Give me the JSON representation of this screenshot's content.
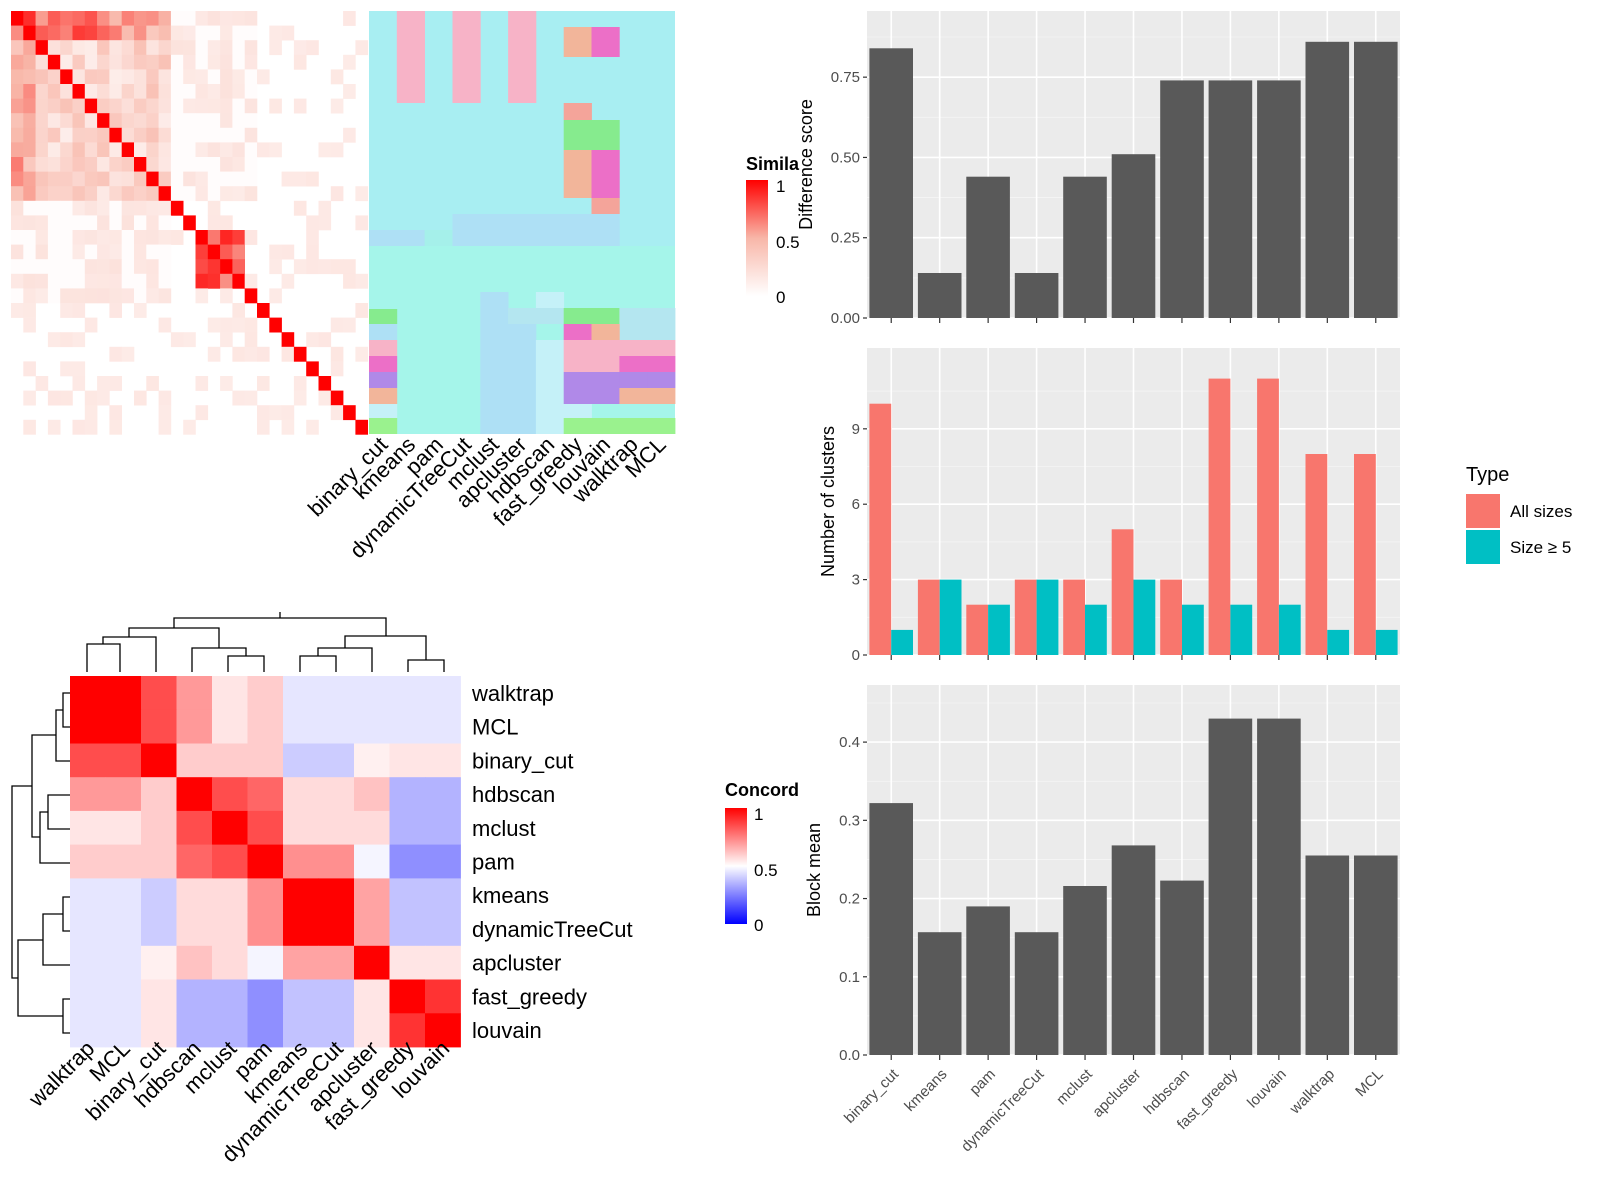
{
  "methods": [
    "binary_cut",
    "kmeans",
    "pam",
    "dynamicTreeCut",
    "mclust",
    "apcluster",
    "hdbscan",
    "fast_greedy",
    "louvain",
    "walktrap",
    "MCL"
  ],
  "legends": {
    "similarity_title": "Simila",
    "similarity_ticks": [
      "1",
      "0.5",
      "0"
    ],
    "concordance_title": "Concord",
    "concordance_ticks": [
      "1",
      "0.5",
      "0"
    ],
    "type_title": "Type",
    "type_items": [
      "All sizes",
      "Size ≥ 5"
    ]
  },
  "colors": {
    "bar_gray": "#595959",
    "all_sizes": "#F8766D",
    "size5": "#00BFC4",
    "panel_bg": "#EBEBEB"
  },
  "chart_data": [
    {
      "type": "heatmap",
      "name": "similarity_matrix",
      "legend_title": "Simila",
      "color_scale": {
        "0": "#ffffff",
        "0.5": "#f8b6a8",
        "1": "#ff0000"
      }
    },
    {
      "type": "heatmap",
      "name": "cluster_membership",
      "columns": [
        "binary_cut",
        "kmeans",
        "pam",
        "dynamicTreeCut",
        "mclust",
        "apcluster",
        "hdbscan",
        "fast_greedy",
        "louvain",
        "walktrap",
        "MCL"
      ]
    },
    {
      "type": "heatmap",
      "name": "concordance_matrix",
      "legend_title": "Concord",
      "rows": [
        "walktrap",
        "MCL",
        "binary_cut",
        "hdbscan",
        "mclust",
        "pam",
        "kmeans",
        "dynamicTreeCut",
        "apcluster",
        "fast_greedy",
        "louvain"
      ],
      "columns": [
        "walktrap",
        "MCL",
        "binary_cut",
        "hdbscan",
        "mclust",
        "pam",
        "kmeans",
        "dynamicTreeCut",
        "apcluster",
        "fast_greedy",
        "louvain"
      ],
      "values": [
        [
          1.0,
          1.0,
          0.85,
          0.7,
          0.55,
          0.6,
          0.45,
          0.45,
          0.45,
          0.45,
          0.45
        ],
        [
          1.0,
          1.0,
          0.85,
          0.7,
          0.55,
          0.6,
          0.45,
          0.45,
          0.45,
          0.45,
          0.45
        ],
        [
          0.85,
          0.85,
          1.0,
          0.6,
          0.6,
          0.6,
          0.4,
          0.4,
          0.53,
          0.55,
          0.55
        ],
        [
          0.7,
          0.7,
          0.6,
          1.0,
          0.85,
          0.8,
          0.57,
          0.57,
          0.62,
          0.35,
          0.35
        ],
        [
          0.55,
          0.55,
          0.6,
          0.85,
          1.0,
          0.85,
          0.57,
          0.57,
          0.57,
          0.35,
          0.35
        ],
        [
          0.6,
          0.6,
          0.6,
          0.8,
          0.85,
          1.0,
          0.72,
          0.72,
          0.48,
          0.28,
          0.28
        ],
        [
          0.45,
          0.45,
          0.4,
          0.57,
          0.57,
          0.72,
          1.0,
          1.0,
          0.68,
          0.38,
          0.38
        ],
        [
          0.45,
          0.45,
          0.4,
          0.57,
          0.57,
          0.72,
          1.0,
          1.0,
          0.68,
          0.38,
          0.38
        ],
        [
          0.45,
          0.45,
          0.53,
          0.62,
          0.57,
          0.48,
          0.68,
          0.68,
          1.0,
          0.55,
          0.55
        ],
        [
          0.45,
          0.45,
          0.55,
          0.35,
          0.35,
          0.28,
          0.38,
          0.38,
          0.55,
          1.0,
          0.9
        ],
        [
          0.45,
          0.45,
          0.55,
          0.35,
          0.35,
          0.28,
          0.38,
          0.38,
          0.55,
          0.9,
          1.0
        ]
      ],
      "color_scale": {
        "0": "#0000ff",
        "0.5": "#ffffff",
        "1": "#ff0000"
      }
    },
    {
      "type": "bar",
      "name": "difference_score",
      "categories": [
        "binary_cut",
        "kmeans",
        "pam",
        "dynamicTreeCut",
        "mclust",
        "apcluster",
        "hdbscan",
        "fast_greedy",
        "louvain",
        "walktrap",
        "MCL"
      ],
      "values": [
        0.84,
        0.14,
        0.44,
        0.14,
        0.44,
        0.51,
        0.74,
        0.74,
        0.74,
        0.86,
        0.86
      ],
      "ylabel": "Difference score",
      "ylim": [
        0,
        0.9
      ],
      "yticks": [
        0.0,
        0.25,
        0.5,
        0.75
      ],
      "ytick_labels": [
        "0.00",
        "0.25",
        "0.50",
        "0.75"
      ]
    },
    {
      "type": "bar",
      "name": "number_of_clusters",
      "categories": [
        "binary_cut",
        "kmeans",
        "pam",
        "dynamicTreeCut",
        "mclust",
        "apcluster",
        "hdbscan",
        "fast_greedy",
        "louvain",
        "walktrap",
        "MCL"
      ],
      "series": [
        {
          "name": "All sizes",
          "values": [
            10,
            3,
            2,
            3,
            3,
            5,
            3,
            11,
            11,
            8,
            8
          ]
        },
        {
          "name": "Size ≥ 5",
          "values": [
            1,
            3,
            2,
            3,
            2,
            3,
            2,
            2,
            2,
            1,
            1
          ]
        }
      ],
      "ylabel": "Number of clusters",
      "ylim": [
        0,
        11.5
      ],
      "yticks": [
        0,
        3,
        6,
        9
      ],
      "ytick_labels": [
        "0",
        "3",
        "6",
        "9"
      ],
      "legend": "right"
    },
    {
      "type": "bar",
      "name": "block_mean",
      "categories": [
        "binary_cut",
        "kmeans",
        "pam",
        "dynamicTreeCut",
        "mclust",
        "apcluster",
        "hdbscan",
        "fast_greedy",
        "louvain",
        "walktrap",
        "MCL"
      ],
      "values": [
        0.322,
        0.157,
        0.19,
        0.157,
        0.216,
        0.268,
        0.223,
        0.43,
        0.43,
        0.255,
        0.255
      ],
      "ylabel": "Block mean",
      "ylim": [
        0,
        0.45
      ],
      "yticks": [
        0.0,
        0.1,
        0.2,
        0.3,
        0.4
      ],
      "ytick_labels": [
        "0.0",
        "0.1",
        "0.2",
        "0.3",
        "0.4"
      ]
    }
  ]
}
